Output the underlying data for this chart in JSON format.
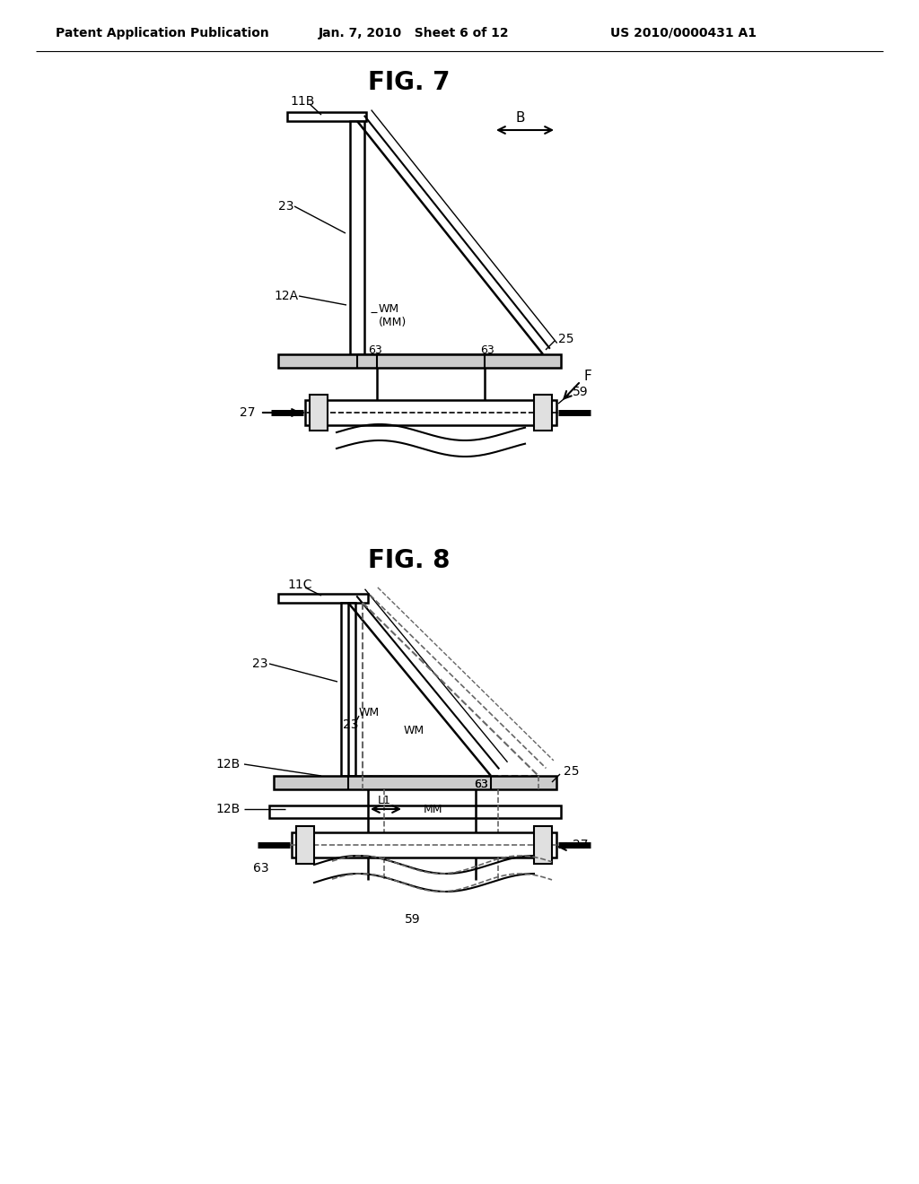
{
  "bg_color": "#ffffff",
  "header_left": "Patent Application Publication",
  "header_mid": "Jan. 7, 2010   Sheet 6 of 12",
  "header_right": "US 2010/0000431 A1",
  "fig7_title": "FIG. 7",
  "fig8_title": "FIG. 8",
  "lc": "#000000",
  "dc": "#666666"
}
